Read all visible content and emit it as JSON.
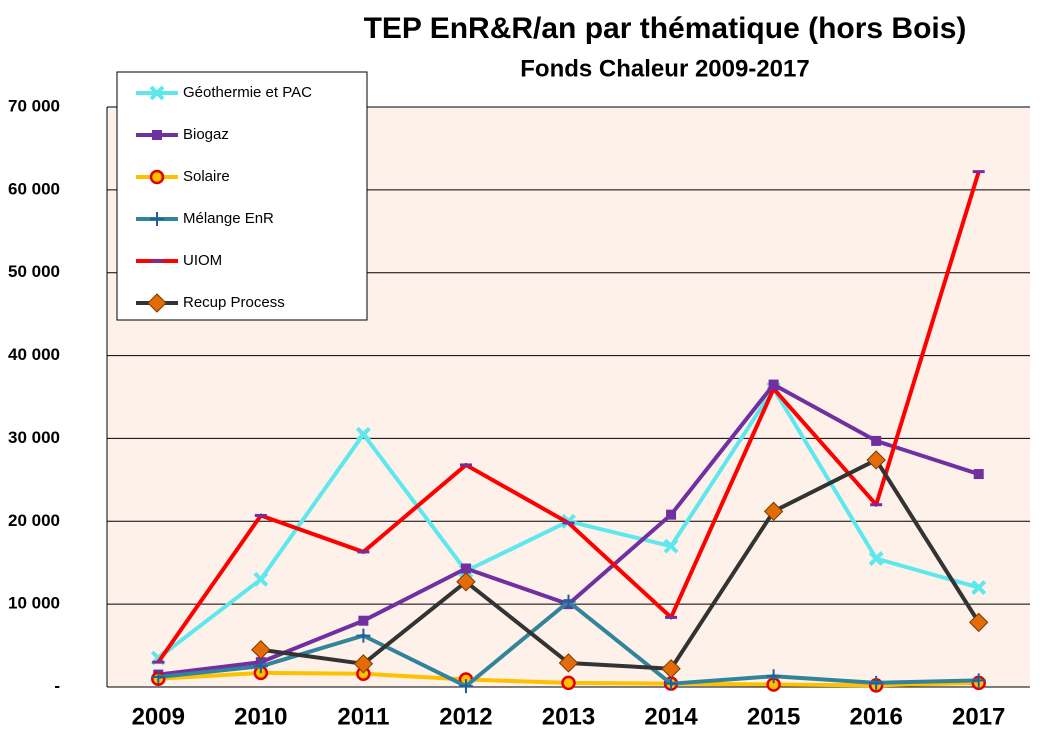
{
  "chart_data": {
    "type": "line",
    "title": "TEP EnR&R/an par thématique (hors Bois)",
    "subtitle": "Fonds Chaleur 2009-2017",
    "categories": [
      "2009",
      "2010",
      "2011",
      "2012",
      "2013",
      "2014",
      "2015",
      "2016",
      "2017"
    ],
    "series": [
      {
        "name": "Géothermie et PAC",
        "color": "#5ee8ee",
        "marker": "x",
        "marker_color": "#5ee8ee",
        "values": [
          3500,
          13000,
          30500,
          14000,
          20000,
          17000,
          36000,
          15500,
          12000
        ]
      },
      {
        "name": "Biogaz",
        "color": "#7030a0",
        "marker": "square",
        "marker_color": "#7030a0",
        "values": [
          1500,
          3000,
          8000,
          14300,
          10000,
          20800,
          36500,
          29700,
          25700
        ]
      },
      {
        "name": "Solaire",
        "color": "#ffc000",
        "marker": "circle",
        "marker_color": "#e00000",
        "values": [
          1000,
          1700,
          1600,
          900,
          500,
          400,
          300,
          200,
          500
        ]
      },
      {
        "name": "Mélange EnR",
        "color": "#31849b",
        "marker": "plus",
        "marker_color": "#1f5f9e",
        "values": [
          1200,
          2500,
          6200,
          100,
          10300,
          400,
          1300,
          500,
          800
        ]
      },
      {
        "name": "UIOM",
        "color": "#ff0000",
        "marker": "dash",
        "marker_color": "#7030a0",
        "values": [
          3000,
          20700,
          16300,
          26800,
          19800,
          8400,
          36000,
          22000,
          62200
        ]
      },
      {
        "name": "Recup Process",
        "color": "#333333",
        "marker": "diamond",
        "marker_color": "#e36c09",
        "values": [
          null,
          4500,
          2800,
          12700,
          2900,
          2200,
          21200,
          27400,
          7800
        ]
      }
    ],
    "ylim": [
      0,
      70000
    ],
    "yticks": [
      {
        "value": 0,
        "label": "-"
      },
      {
        "value": 10000,
        "label": "10 000"
      },
      {
        "value": 20000,
        "label": "20 000"
      },
      {
        "value": 30000,
        "label": "30 000"
      },
      {
        "value": 40000,
        "label": "40 000"
      },
      {
        "value": 50000,
        "label": "50 000"
      },
      {
        "value": 60000,
        "label": "60 000"
      },
      {
        "value": 70000,
        "label": "70 000"
      }
    ],
    "grid": true,
    "legend": "top-left"
  }
}
